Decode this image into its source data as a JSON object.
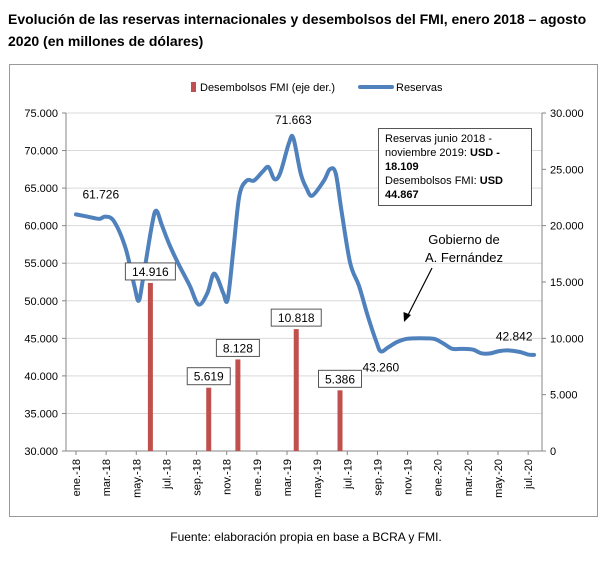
{
  "title": "Evolución de las reservas internacionales y desembolsos del FMI, enero 2018 – agosto 2020 (en millones de dólares)",
  "source": "Fuente: elaboración propia en base a BCRA y FMI.",
  "note": {
    "line1": "Reservas junio 2018 -",
    "line2_prefix": "noviembre 2019: ",
    "line2_bold": "USD - 18.109",
    "line3_prefix": "Desembolsos FMI: ",
    "line3_bold": "USD 44.867"
  },
  "annotation": {
    "line1": "Gobierno de",
    "line2": "A. Fernández"
  },
  "colors": {
    "reserves": "#4f81bd",
    "imf": "#c0504d",
    "grid": "#d9d9d9",
    "axis": "#868686"
  },
  "chart_data": {
    "type": "line",
    "legend": {
      "position": "top",
      "entries": [
        "Desembolsos FMI (eje der.)",
        "Reservas"
      ]
    },
    "x_tick_labels": [
      "ene.-18",
      "mar.-18",
      "may.-18",
      "jul.-18",
      "sep.-18",
      "nov.-18",
      "ene.-19",
      "mar.-19",
      "may.-19",
      "jul.-19",
      "sep.-19",
      "nov.-19",
      "ene.-20",
      "mar.-20",
      "may.-20",
      "jul.-20"
    ],
    "y_left": {
      "min": 30000,
      "max": 75000,
      "step": 5000,
      "ticks": [
        "30.000",
        "35.000",
        "40.000",
        "45.000",
        "50.000",
        "55.000",
        "60.000",
        "65.000",
        "70.000",
        "75.000"
      ]
    },
    "y_right": {
      "min": 0,
      "max": 30000,
      "step": 5000,
      "ticks": [
        "0",
        "5.000",
        "10.000",
        "15.000",
        "20.000",
        "25.000",
        "30.000"
      ]
    },
    "reserves_points": [
      [
        0,
        61500
      ],
      [
        0.4,
        61200
      ],
      [
        0.8,
        60900
      ],
      [
        1.0,
        61200
      ],
      [
        1.3,
        60600
      ],
      [
        1.7,
        57000
      ],
      [
        2.0,
        52000
      ],
      [
        2.15,
        50000
      ],
      [
        2.3,
        53000
      ],
      [
        2.6,
        60000
      ],
      [
        2.75,
        62000
      ],
      [
        2.95,
        60000
      ],
      [
        3.2,
        57500
      ],
      [
        3.5,
        55000
      ],
      [
        3.9,
        52000
      ],
      [
        4.2,
        49500
      ],
      [
        4.5,
        51000
      ],
      [
        4.7,
        53500
      ],
      [
        4.85,
        53000
      ],
      [
        5.05,
        51000
      ],
      [
        5.2,
        50200
      ],
      [
        5.4,
        57000
      ],
      [
        5.6,
        64000
      ],
      [
        5.85,
        66000
      ],
      [
        6.1,
        66000
      ],
      [
        6.4,
        67200
      ],
      [
        6.6,
        67800
      ],
      [
        6.8,
        66200
      ],
      [
        7.0,
        67000
      ],
      [
        7.3,
        71000
      ],
      [
        7.45,
        71663
      ],
      [
        7.7,
        67000
      ],
      [
        7.9,
        65000
      ],
      [
        8.1,
        64000
      ],
      [
        8.5,
        66000
      ],
      [
        8.7,
        67500
      ],
      [
        8.9,
        67000
      ],
      [
        9.1,
        62000
      ],
      [
        9.4,
        55000
      ],
      [
        9.7,
        52000
      ],
      [
        10.0,
        48000
      ],
      [
        10.3,
        44500
      ],
      [
        10.45,
        43260
      ],
      [
        10.7,
        43800
      ],
      [
        11.0,
        44500
      ],
      [
        11.3,
        44900
      ],
      [
        11.6,
        45000
      ],
      [
        12.0,
        45000
      ],
      [
        12.3,
        44900
      ],
      [
        12.6,
        44300
      ],
      [
        12.9,
        43600
      ],
      [
        13.2,
        43600
      ],
      [
        13.6,
        43500
      ],
      [
        13.9,
        43000
      ],
      [
        14.2,
        43000
      ],
      [
        14.5,
        43300
      ],
      [
        14.8,
        43400
      ],
      [
        15.2,
        43200
      ],
      [
        15.5,
        42842
      ],
      [
        15.7,
        42800
      ]
    ],
    "reserves_labels": [
      {
        "text": "61.726",
        "x": 0.85,
        "y": 61726
      },
      {
        "text": "71.663",
        "x": 7.45,
        "y": 71663
      },
      {
        "text": "43.260",
        "x": 10.45,
        "y": 43260
      },
      {
        "text": "42.842",
        "x": 15.5,
        "y": 42842
      }
    ],
    "imf_disbursements": [
      {
        "x": 2.55,
        "value": 14916,
        "label": "14.916"
      },
      {
        "x": 4.55,
        "value": 5619,
        "label": "5.619"
      },
      {
        "x": 5.55,
        "value": 8128,
        "label": "8.128"
      },
      {
        "x": 7.55,
        "value": 10818,
        "label": "10.818"
      },
      {
        "x": 9.05,
        "value": 5386,
        "label": "5.386"
      }
    ]
  }
}
